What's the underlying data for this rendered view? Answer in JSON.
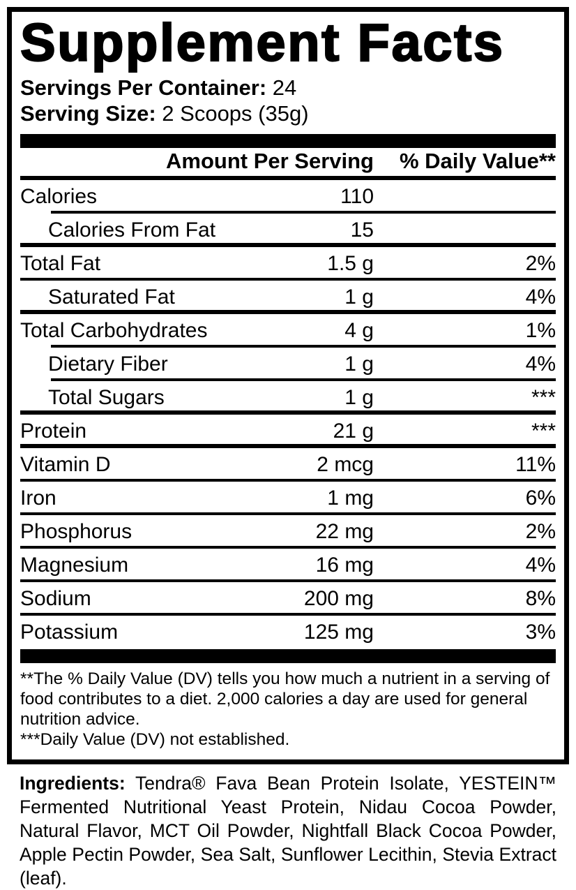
{
  "title": "Supplement Facts",
  "meta": {
    "servings_label": "Servings Per Container:",
    "servings_value": " 24",
    "serving_size_label": "Serving Size:",
    "serving_size_value": " 2 Scoops (35g)"
  },
  "table": {
    "header": {
      "amount": "Amount Per Serving",
      "dv": "% Daily Value**"
    },
    "nutrients": [
      {
        "name": "Calories",
        "amount": "110",
        "dv": ""
      },
      {
        "name": "Calories From Fat",
        "amount": "15",
        "dv": ""
      },
      {
        "name": "Total Fat",
        "amount": "1.5 g",
        "dv": "2%"
      },
      {
        "name": "Saturated Fat",
        "amount": "1 g",
        "dv": "4%"
      },
      {
        "name": "Total Carbohydrates",
        "amount": "4 g",
        "dv": "1%"
      },
      {
        "name": "Dietary Fiber",
        "amount": "1 g",
        "dv": "4%"
      },
      {
        "name": "Total Sugars",
        "amount": "1 g",
        "dv": "***"
      },
      {
        "name": "Protein",
        "amount": "21 g",
        "dv": "***"
      },
      {
        "name": "Vitamin D",
        "amount": "2 mcg",
        "dv": "11%"
      },
      {
        "name": "Iron",
        "amount": "1 mg",
        "dv": "6%"
      },
      {
        "name": "Phosphorus",
        "amount": "22 mg",
        "dv": "2%"
      },
      {
        "name": "Magnesium",
        "amount": "16 mg",
        "dv": "4%"
      },
      {
        "name": "Sodium",
        "amount": "200 mg",
        "dv": "8%"
      },
      {
        "name": "Potassium",
        "amount": "125 mg",
        "dv": "3%"
      }
    ]
  },
  "footnotes": {
    "daily_value": "**The % Daily Value (DV) tells you how much a nutrient in a serving of food contributes to a diet. 2,000 calories a day are used for general nutrition advice.",
    "not_established": "***Daily Value (DV) not established."
  },
  "ingredients": {
    "label": "Ingredients:",
    "text": " Tendra® Fava Bean Protein Isolate, YESTEIN™ Fermented Nutritional Yeast Protein, Nidau Cocoa Powder, Natural Flavor, MCT Oil Powder, Nightfall Black Cocoa Powder, Apple Pectin Powder, Sea Salt, Sunflower Lecithin, Stevia Extract (leaf)."
  },
  "colors": {
    "ink": "#000000",
    "paper": "#ffffff"
  }
}
